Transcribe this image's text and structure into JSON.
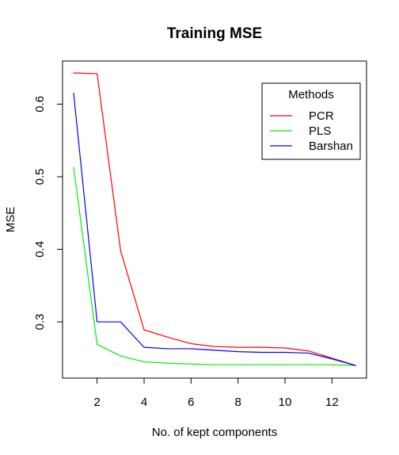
{
  "chart_data": {
    "type": "line",
    "title": "Training MSE",
    "xlabel": "No. of kept components",
    "ylabel": "MSE",
    "x": [
      1,
      2,
      3,
      4,
      5,
      6,
      7,
      8,
      9,
      10,
      11,
      12,
      13
    ],
    "xlim": [
      1,
      13
    ],
    "ylim": [
      0.24,
      0.643
    ],
    "xticks": [
      2,
      4,
      6,
      8,
      10,
      12
    ],
    "yticks": [
      0.3,
      0.4,
      0.5,
      0.6
    ],
    "xtick_labels": [
      "2",
      "4",
      "6",
      "8",
      "10",
      "12"
    ],
    "ytick_labels": [
      "0.3",
      "0.4",
      "0.5",
      "0.6"
    ],
    "grid": false,
    "legend": {
      "title": "Methods",
      "position": "top-right"
    },
    "series": [
      {
        "name": "PCR",
        "color": "#ff0000",
        "values": [
          0.643,
          0.642,
          0.398,
          0.289,
          0.279,
          0.27,
          0.266,
          0.265,
          0.265,
          0.264,
          0.26,
          0.25,
          0.24
        ]
      },
      {
        "name": "PLS",
        "color": "#00ee00",
        "values": [
          0.513,
          0.269,
          0.253,
          0.245,
          0.243,
          0.242,
          0.241,
          0.241,
          0.241,
          0.241,
          0.241,
          0.241,
          0.24
        ]
      },
      {
        "name": "Barshan",
        "color": "#0000ff",
        "values": [
          0.615,
          0.3,
          0.3,
          0.265,
          0.263,
          0.263,
          0.261,
          0.259,
          0.258,
          0.258,
          0.257,
          0.249,
          0.24
        ]
      }
    ]
  }
}
